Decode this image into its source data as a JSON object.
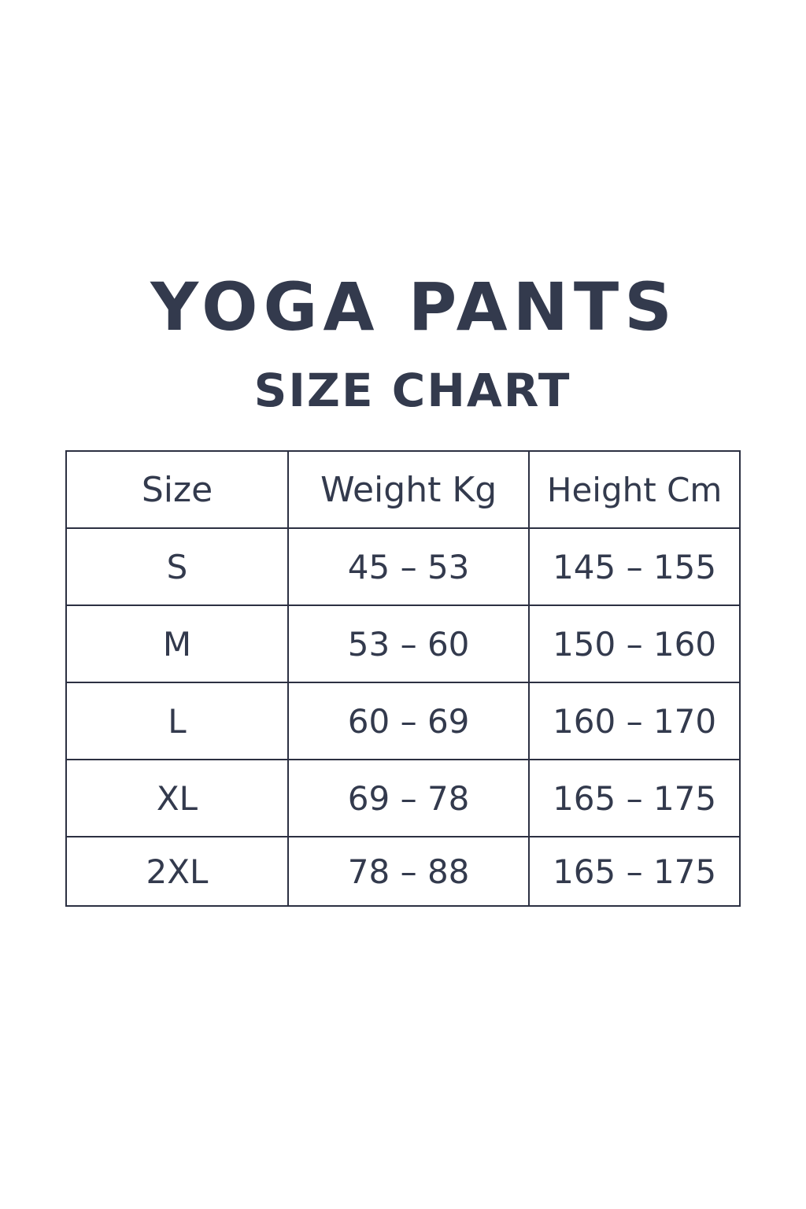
{
  "title": "YOGA PANTS",
  "subtitle": "SIZE CHART",
  "table": {
    "headers": [
      "Size",
      "Weight Kg",
      "Height Cm"
    ],
    "rows": [
      [
        "S",
        "45 – 53",
        "145 – 155"
      ],
      [
        "M",
        "53 – 60",
        "150 – 160"
      ],
      [
        "L",
        "60 – 69",
        "160 – 170"
      ],
      [
        "XL",
        "69 – 78",
        "165 – 175"
      ],
      [
        "2XL",
        "78 – 88",
        "165 – 175"
      ]
    ]
  }
}
